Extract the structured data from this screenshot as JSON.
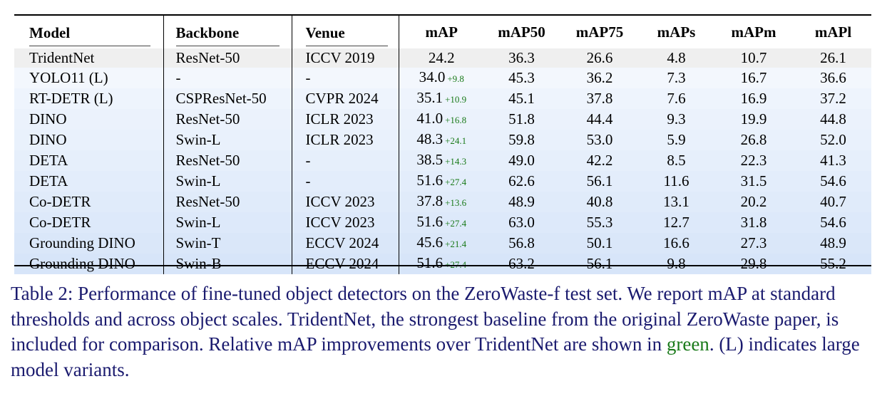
{
  "table": {
    "headers": [
      "Model",
      "Backbone",
      "Venue",
      "mAP",
      "mAP50",
      "mAP75",
      "mAPs",
      "mAPm",
      "mAPl"
    ],
    "rows": [
      {
        "model": "TridentNet",
        "backbone": "ResNet-50",
        "venue": "ICCV 2019",
        "map": "24.2",
        "delta": "",
        "map50": "36.3",
        "map75": "26.6",
        "maps": "4.8",
        "mapm": "10.7",
        "mapl": "26.1"
      },
      {
        "model": "YOLO11 (L)",
        "backbone": "-",
        "venue": "-",
        "map": "34.0",
        "delta": "+9.8",
        "map50": "45.3",
        "map75": "36.2",
        "maps": "7.3",
        "mapm": "16.7",
        "mapl": "36.6"
      },
      {
        "model": "RT-DETR (L)",
        "backbone": "CSPResNet-50",
        "venue": "CVPR 2024",
        "map": "35.1",
        "delta": "+10.9",
        "map50": "45.1",
        "map75": "37.8",
        "maps": "7.6",
        "mapm": "16.9",
        "mapl": "37.2"
      },
      {
        "model": "DINO",
        "backbone": "ResNet-50",
        "venue": "ICLR 2023",
        "map": "41.0",
        "delta": "+16.8",
        "map50": "51.8",
        "map75": "44.4",
        "maps": "9.3",
        "mapm": "19.9",
        "mapl": "44.8"
      },
      {
        "model": "DINO",
        "backbone": "Swin-L",
        "venue": "ICLR 2023",
        "map": "48.3",
        "delta": "+24.1",
        "map50": "59.8",
        "map75": "53.0",
        "maps": "5.9",
        "mapm": "26.8",
        "mapl": "52.0"
      },
      {
        "model": "DETA",
        "backbone": "ResNet-50",
        "venue": "-",
        "map": "38.5",
        "delta": "+14.3",
        "map50": "49.0",
        "map75": "42.2",
        "maps": "8.5",
        "mapm": "22.3",
        "mapl": "41.3"
      },
      {
        "model": "DETA",
        "backbone": "Swin-L",
        "venue": "-",
        "map": "51.6",
        "delta": "+27.4",
        "map50": "62.6",
        "map75": "56.1",
        "maps": "11.6",
        "mapm": "31.5",
        "mapl": "54.6"
      },
      {
        "model": "Co-DETR",
        "backbone": "ResNet-50",
        "venue": "ICCV 2023",
        "map": "37.8",
        "delta": "+13.6",
        "map50": "48.9",
        "map75": "40.8",
        "maps": "13.1",
        "mapm": "20.2",
        "mapl": "40.7"
      },
      {
        "model": "Co-DETR",
        "backbone": "Swin-L",
        "venue": "ICCV 2023",
        "map": "51.6",
        "delta": "+27.4",
        "map50": "63.0",
        "map75": "55.3",
        "maps": "12.7",
        "mapm": "31.8",
        "mapl": "54.6"
      },
      {
        "model": "Grounding DINO",
        "backbone": "Swin-T",
        "venue": "ECCV 2024",
        "map": "45.6",
        "delta": "+21.4",
        "map50": "56.8",
        "map75": "50.1",
        "maps": "16.6",
        "mapm": "27.3",
        "mapl": "48.9"
      },
      {
        "model": "Grounding DINO",
        "backbone": "Swin-B",
        "venue": "ECCV 2024",
        "map": "51.6",
        "delta": "+27.4",
        "map50": "63.2",
        "map75": "56.1",
        "maps": "9.8",
        "mapm": "29.8",
        "mapl": "55.2"
      }
    ]
  },
  "caption": {
    "part1": "Table 2: Performance of fine-tuned object detectors on the ZeroWaste-f test set. We report mAP at standard thresholds and across object scales. TridentNet, the strongest baseline from the original ZeroWaste paper, is included for comparison. Relative mAP improvements over TridentNet are shown in ",
    "green_word": "green",
    "part2": ". (L) indicates large model variants."
  },
  "colors": {
    "delta_green": "#1a7a1a",
    "caption_text": "#1a1a6e",
    "baseline_row": "#efefef",
    "gradient_light": "#f3f7fd",
    "gradient_dark": "#d7e5f9"
  }
}
